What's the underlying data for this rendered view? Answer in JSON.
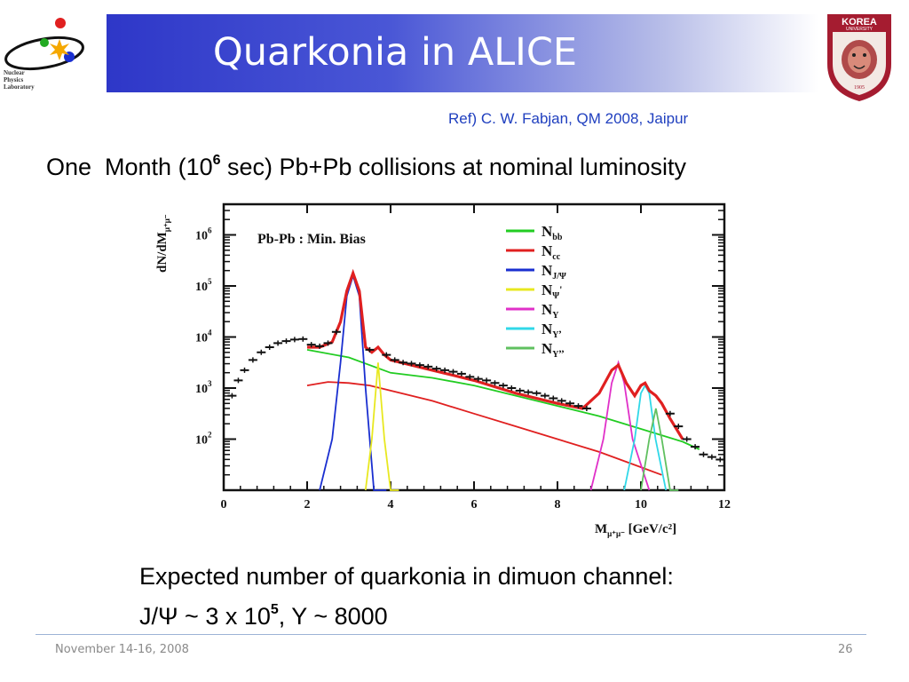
{
  "slide": {
    "title": "Quarkonia in ALICE",
    "reference": "Ref) C. W. Fabjan, QM 2008, Jaipur",
    "headline": {
      "part1": "One  Month (10",
      "exp": "6",
      "part2": " sec) Pb+Pb collisions at nominal luminosity"
    },
    "caption": {
      "line1": "Expected number of quarkonia in dimuon channel:",
      "line2_a": "J/Ψ ~ 3 x 10",
      "line2_exp": "5",
      "line2_b": ", Y ~ 8000"
    },
    "footer": {
      "date": "November 14-16, 2008",
      "page": "26"
    },
    "logos": {
      "npl_text": [
        "Nuclear",
        "Physics",
        "Laboratory"
      ],
      "ku_text": "KOREA",
      "ku_sub": "UNIVERSITY",
      "ku_year": "1905",
      "ku_color": "#a51c30"
    }
  },
  "chart_data": {
    "type": "line",
    "title": "Pb-Pb : Min. Bias",
    "xlabel": "Mμ+μ- [GeV/c²]",
    "ylabel": "dN/dMμ+μ-",
    "xlim": [
      0,
      12
    ],
    "ylim_log10": [
      1.0,
      6.6
    ],
    "log_y": true,
    "x_ticks": [
      "0",
      "2",
      "4",
      "6",
      "8",
      "10",
      "12"
    ],
    "y_ticks": [
      {
        "base": "10",
        "exp": "2",
        "log": 2
      },
      {
        "base": "10",
        "exp": "3",
        "log": 3
      },
      {
        "base": "10",
        "exp": "4",
        "log": 4
      },
      {
        "base": "10",
        "exp": "5",
        "log": 5
      },
      {
        "base": "10",
        "exp": "6",
        "log": 6
      }
    ],
    "legend_position": "top-right",
    "series": [
      {
        "name": "N_bb",
        "label": "N",
        "sub": "bb",
        "sup": "",
        "color": "#22cc22",
        "x": [
          2.0,
          3.0,
          4.0,
          5.0,
          6.0,
          7.0,
          8.0,
          9.0,
          10.0,
          11.0,
          11.4
        ],
        "y": [
          3.75,
          3.6,
          3.3,
          3.2,
          3.05,
          2.85,
          2.65,
          2.45,
          2.2,
          1.95,
          1.8
        ]
      },
      {
        "name": "N_cc",
        "label": "N",
        "sub": "cc",
        "sup": "",
        "color": "#e02020",
        "x": [
          2.0,
          2.5,
          3.0,
          3.5,
          4.0,
          5.0,
          6.0,
          7.0,
          8.0,
          9.0,
          10.0,
          10.5
        ],
        "y": [
          3.05,
          3.12,
          3.1,
          3.05,
          2.95,
          2.75,
          2.5,
          2.25,
          2.0,
          1.75,
          1.45,
          1.3
        ]
      },
      {
        "name": "N_J/Ψ",
        "label": "N",
        "sub": "J/Ψ",
        "sup": "",
        "color": "#1a2fd0",
        "x": [
          2.3,
          2.6,
          2.8,
          2.95,
          3.1,
          3.25,
          3.4,
          3.6,
          3.9
        ],
        "y": [
          1.0,
          2.0,
          3.5,
          4.8,
          5.2,
          4.8,
          3.0,
          1.0,
          1.0
        ]
      },
      {
        "name": "N_Ψ'",
        "label": "N",
        "sub": "Ψ",
        "sup": "'",
        "color": "#e8e820",
        "x": [
          3.4,
          3.55,
          3.7,
          3.85,
          4.0,
          4.2
        ],
        "y": [
          1.0,
          2.0,
          3.5,
          2.0,
          1.0,
          1.0
        ]
      },
      {
        "name": "N_Y",
        "label": "N",
        "sub": "Y",
        "sup": "",
        "color": "#e030c8",
        "x": [
          8.8,
          9.1,
          9.3,
          9.46,
          9.6,
          9.8,
          10.2
        ],
        "y": [
          1.0,
          2.0,
          3.1,
          3.5,
          3.1,
          2.0,
          1.0
        ]
      },
      {
        "name": "N_Y'",
        "label": "N",
        "sub": "Y",
        "sup": ",",
        "color": "#30d8e8",
        "x": [
          9.6,
          9.85,
          10.0,
          10.1,
          10.2,
          10.35,
          10.6
        ],
        "y": [
          1.0,
          2.0,
          2.9,
          3.05,
          2.9,
          2.0,
          1.0
        ]
      },
      {
        "name": "N_Y''",
        "label": "N",
        "sub": "Y",
        "sup": ",,",
        "color": "#60c060",
        "x": [
          10.0,
          10.2,
          10.36,
          10.5,
          10.7,
          10.9
        ],
        "y": [
          1.0,
          2.0,
          2.6,
          2.0,
          1.0,
          1.0
        ]
      }
    ],
    "total_fit": {
      "color": "#e02020",
      "x": [
        2.0,
        2.3,
        2.6,
        2.8,
        2.95,
        3.1,
        3.25,
        3.4,
        3.55,
        3.7,
        3.85,
        4.0,
        5.0,
        6.0,
        7.0,
        8.0,
        8.6,
        9.0,
        9.3,
        9.46,
        9.65,
        9.85,
        10.0,
        10.1,
        10.2,
        10.36,
        10.5,
        10.7,
        11.0
      ],
      "y": [
        3.8,
        3.8,
        3.9,
        4.3,
        4.9,
        5.25,
        4.9,
        3.8,
        3.7,
        3.8,
        3.65,
        3.55,
        3.35,
        3.15,
        2.9,
        2.7,
        2.6,
        2.9,
        3.35,
        3.45,
        3.1,
        2.85,
        3.05,
        3.1,
        2.95,
        2.85,
        2.7,
        2.4,
        2.0
      ]
    },
    "data_points": {
      "x": [
        0.2,
        0.35,
        0.5,
        0.7,
        0.9,
        1.1,
        1.3,
        1.5,
        1.7,
        1.9,
        2.1,
        2.3,
        2.5,
        2.7,
        3.5,
        3.9,
        4.1,
        4.3,
        4.5,
        4.7,
        4.9,
        5.1,
        5.3,
        5.5,
        5.7,
        5.9,
        6.1,
        6.3,
        6.5,
        6.7,
        6.9,
        7.1,
        7.3,
        7.5,
        7.7,
        7.9,
        8.1,
        8.3,
        8.5,
        8.7,
        10.7,
        10.9,
        11.1,
        11.3,
        11.5,
        11.7,
        11.9
      ],
      "y": [
        2.85,
        3.15,
        3.35,
        3.55,
        3.7,
        3.8,
        3.88,
        3.92,
        3.95,
        3.96,
        3.85,
        3.82,
        3.88,
        4.1,
        3.75,
        3.65,
        3.55,
        3.5,
        3.48,
        3.45,
        3.42,
        3.38,
        3.35,
        3.32,
        3.28,
        3.22,
        3.18,
        3.15,
        3.1,
        3.05,
        3.0,
        2.95,
        2.92,
        2.9,
        2.85,
        2.8,
        2.75,
        2.7,
        2.65,
        2.6,
        2.5,
        2.25,
        2.0,
        1.85,
        1.7,
        1.65,
        1.6
      ]
    }
  }
}
